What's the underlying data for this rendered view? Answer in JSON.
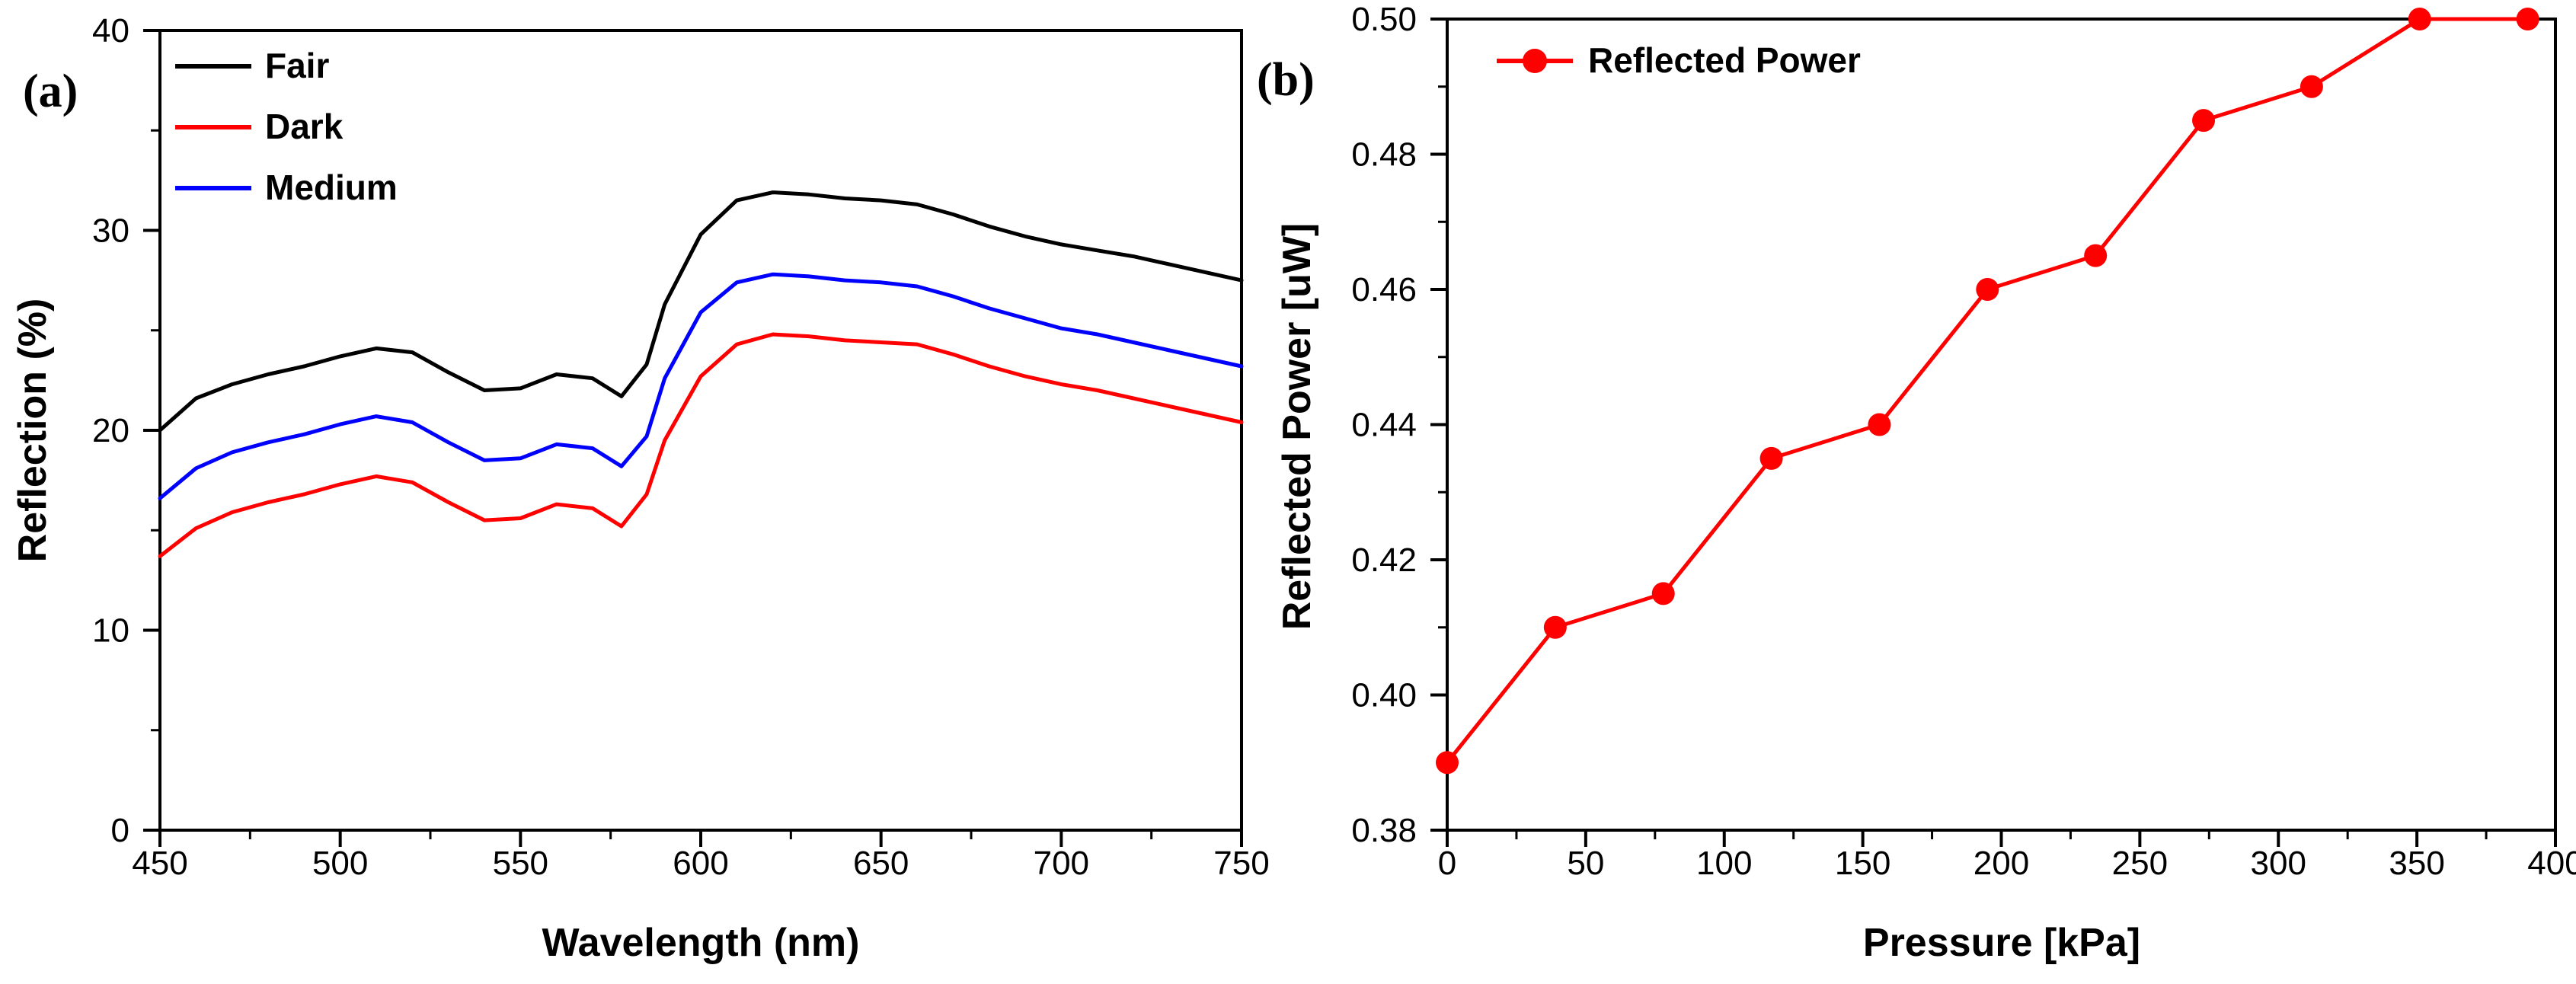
{
  "chart_data": [
    {
      "type": "line",
      "panel_label": "(a)",
      "title": "",
      "xlabel": "Wavelength (nm)",
      "ylabel": "Reflection (%)",
      "xlim": [
        450,
        750
      ],
      "ylim": [
        0,
        40
      ],
      "xticks": [
        450,
        500,
        550,
        600,
        650,
        700,
        750
      ],
      "yticks": [
        0,
        10,
        20,
        30,
        40
      ],
      "grid": false,
      "legend_position": "top-left",
      "x": [
        450,
        460,
        470,
        480,
        490,
        500,
        510,
        520,
        530,
        540,
        550,
        560,
        570,
        578,
        585,
        590,
        600,
        610,
        620,
        630,
        640,
        650,
        660,
        670,
        680,
        690,
        700,
        710,
        720,
        730,
        740,
        750
      ],
      "series": [
        {
          "name": "Fair",
          "color": "#000000",
          "values": [
            20.0,
            21.6,
            22.3,
            22.8,
            23.2,
            23.7,
            24.1,
            23.9,
            22.9,
            22.0,
            22.1,
            22.8,
            22.6,
            21.7,
            23.3,
            26.3,
            29.8,
            31.5,
            31.9,
            31.8,
            31.6,
            31.5,
            31.3,
            30.8,
            30.2,
            29.7,
            29.3,
            29.0,
            28.7,
            28.3,
            27.9,
            27.5
          ]
        },
        {
          "name": "Dark",
          "color": "#ff0000",
          "values": [
            13.7,
            15.1,
            15.9,
            16.4,
            16.8,
            17.3,
            17.7,
            17.4,
            16.4,
            15.5,
            15.6,
            16.3,
            16.1,
            15.2,
            16.8,
            19.5,
            22.7,
            24.3,
            24.8,
            24.7,
            24.5,
            24.4,
            24.3,
            23.8,
            23.2,
            22.7,
            22.3,
            22.0,
            21.6,
            21.2,
            20.8,
            20.4
          ]
        },
        {
          "name": "Medium",
          "color": "#0000ff",
          "values": [
            16.6,
            18.1,
            18.9,
            19.4,
            19.8,
            20.3,
            20.7,
            20.4,
            19.4,
            18.5,
            18.6,
            19.3,
            19.1,
            18.2,
            19.7,
            22.6,
            25.9,
            27.4,
            27.8,
            27.7,
            27.5,
            27.4,
            27.2,
            26.7,
            26.1,
            25.6,
            25.1,
            24.8,
            24.4,
            24.0,
            23.6,
            23.2
          ]
        }
      ]
    },
    {
      "type": "line",
      "panel_label": "(b)",
      "title": "",
      "xlabel": "Pressure [kPa]",
      "ylabel": "Reflected Power [uW]",
      "xlim": [
        0,
        400
      ],
      "ylim": [
        0.38,
        0.5
      ],
      "xticks": [
        "0",
        "50",
        "100",
        "150",
        "200",
        "250",
        "300",
        "350",
        "400"
      ],
      "yticks": [
        "0.38",
        "0.40",
        "0.42",
        "0.44",
        "0.46",
        "0.48",
        "0.50"
      ],
      "grid": false,
      "legend_position": "top-left",
      "x": [
        0,
        39,
        78,
        117,
        156,
        195,
        234,
        273,
        312,
        351,
        390
      ],
      "series": [
        {
          "name": "Reflected Power",
          "color": "#ff0000",
          "marker": "circle",
          "values": [
            0.39,
            0.41,
            0.415,
            0.435,
            0.44,
            0.46,
            0.465,
            0.485,
            0.49,
            0.5,
            0.5
          ]
        }
      ]
    }
  ]
}
